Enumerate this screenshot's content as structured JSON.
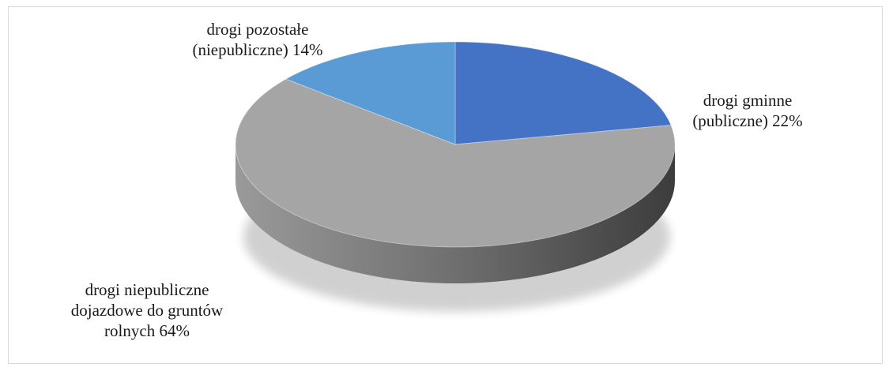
{
  "chart_data": {
    "type": "pie",
    "style": "3d",
    "title": "",
    "slices": [
      {
        "label_lines": [
          "drogi gminne",
          "(publiczne) 22%"
        ],
        "value": 22,
        "color": "#4472c4",
        "side_color": "#2f528f"
      },
      {
        "label_lines": [
          "drogi niepubliczne",
          "dojazdowe do gruntów",
          "rolnych 64%"
        ],
        "value": 64,
        "color": "#a5a5a5",
        "side_color": "#6e6e6e"
      },
      {
        "label_lines": [
          "drogi pozostałe",
          "(niepubliczne) 14%"
        ],
        "value": 14,
        "color": "#5b9bd5",
        "side_color": "#3b77ae"
      }
    ],
    "start_angle_deg": 0,
    "direction": "clockwise",
    "legend": "none"
  }
}
